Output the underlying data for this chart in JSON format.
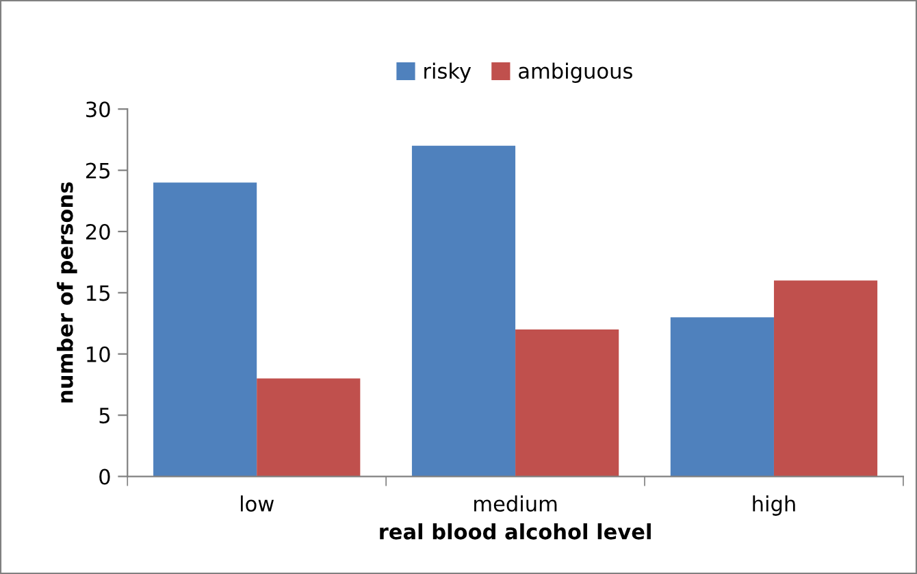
{
  "chart_data": {
    "type": "bar",
    "xlabel": "real blood alcohol level",
    "ylabel": "number of persons",
    "categories": [
      "low",
      "medium",
      "high"
    ],
    "series": [
      {
        "name": "risky",
        "color": "#4f81bd",
        "values": [
          24,
          27,
          13
        ]
      },
      {
        "name": "ambiguous",
        "color": "#c0504d",
        "values": [
          8,
          12,
          16
        ]
      }
    ],
    "ylim": [
      0,
      30
    ],
    "yticks": [
      0,
      5,
      10,
      15,
      20,
      25,
      30
    ],
    "grid": false,
    "legend": "top"
  }
}
